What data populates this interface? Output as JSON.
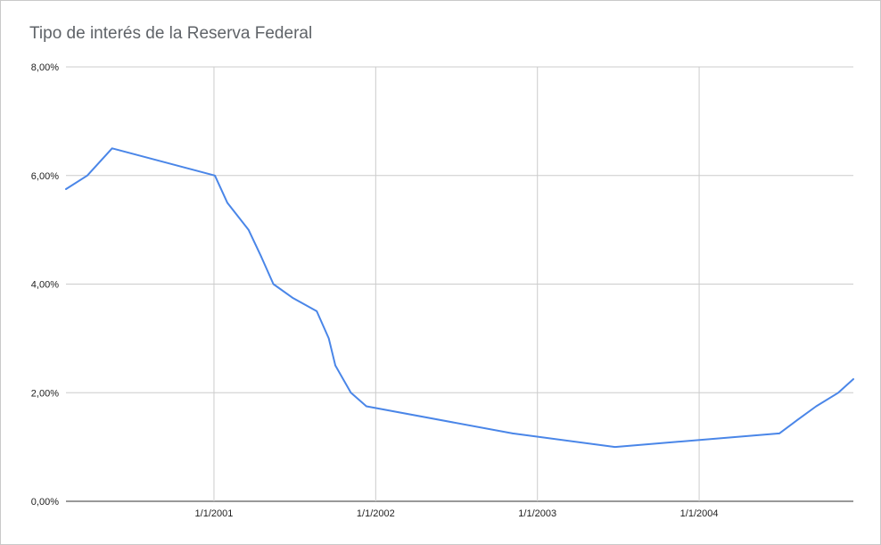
{
  "chart_data": {
    "type": "line",
    "title": "Tipo de interés de la Reserva Federal",
    "xlabel": "",
    "ylabel": "",
    "y_ticks": [
      "0,00%",
      "2,00%",
      "4,00%",
      "6,00%",
      "8,00%"
    ],
    "x_ticks": [
      "1/1/2001",
      "1/1/2002",
      "1/1/2003",
      "1/1/2004"
    ],
    "ylim": [
      0,
      8
    ],
    "xlim": [
      "2000-02-02",
      "2004-12-14"
    ],
    "grid": true,
    "line_color": "#4a86e8",
    "series": [
      {
        "points": [
          {
            "x": "2000-02-02",
            "y": 5.75
          },
          {
            "x": "2000-03-21",
            "y": 6.0
          },
          {
            "x": "2000-05-16",
            "y": 6.5
          },
          {
            "x": "2001-01-03",
            "y": 6.0
          },
          {
            "x": "2001-01-31",
            "y": 5.5
          },
          {
            "x": "2001-03-20",
            "y": 5.0
          },
          {
            "x": "2001-04-18",
            "y": 4.5
          },
          {
            "x": "2001-05-15",
            "y": 4.0
          },
          {
            "x": "2001-06-27",
            "y": 3.75
          },
          {
            "x": "2001-08-21",
            "y": 3.5
          },
          {
            "x": "2001-09-17",
            "y": 3.0
          },
          {
            "x": "2001-10-02",
            "y": 2.5
          },
          {
            "x": "2001-11-06",
            "y": 2.0
          },
          {
            "x": "2001-12-11",
            "y": 1.75
          },
          {
            "x": "2002-11-06",
            "y": 1.25
          },
          {
            "x": "2003-06-25",
            "y": 1.0
          },
          {
            "x": "2004-06-30",
            "y": 1.25
          },
          {
            "x": "2004-08-10",
            "y": 1.5
          },
          {
            "x": "2004-09-21",
            "y": 1.75
          },
          {
            "x": "2004-11-10",
            "y": 2.0
          },
          {
            "x": "2004-12-14",
            "y": 2.25
          }
        ]
      }
    ]
  }
}
